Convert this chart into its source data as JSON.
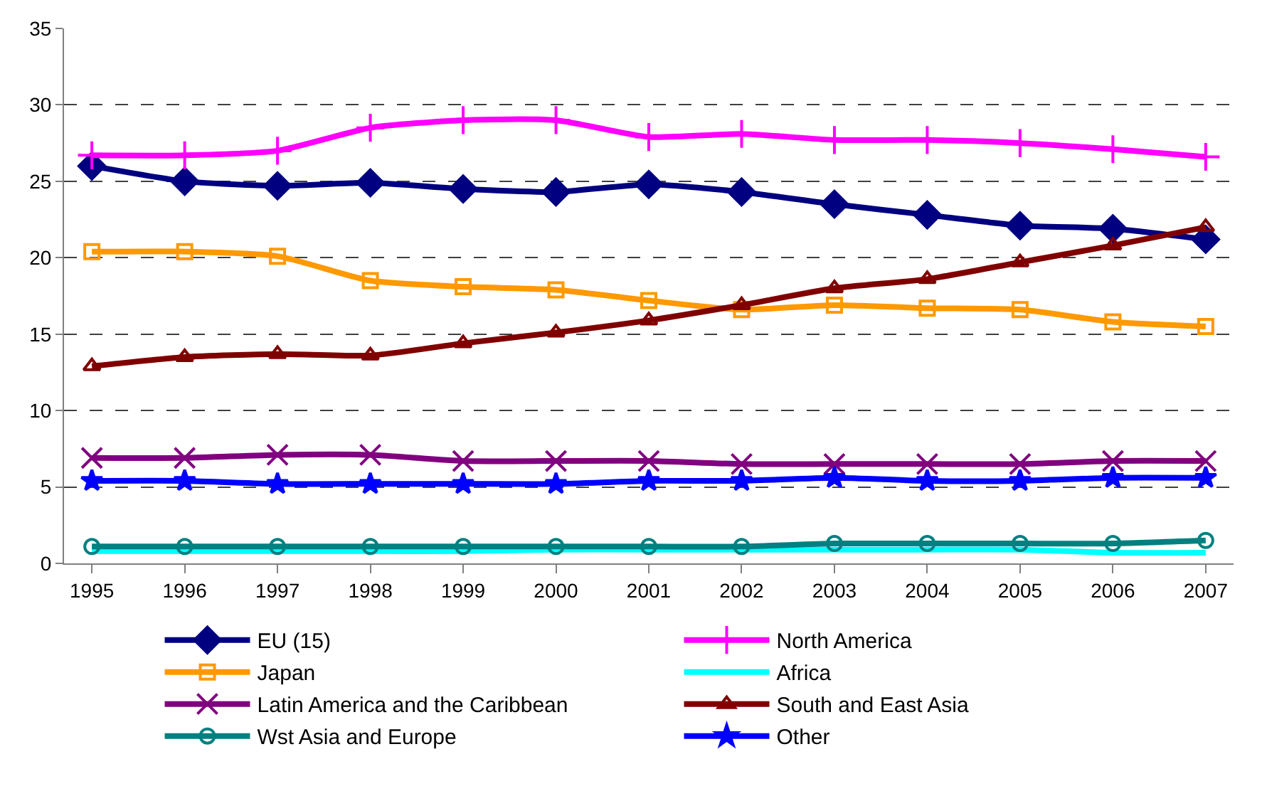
{
  "chart_data": {
    "type": "line",
    "categories": [
      "1995",
      "1996",
      "1997",
      "1998",
      "1999",
      "2000",
      "2001",
      "2002",
      "2003",
      "2004",
      "2005",
      "2006",
      "2007"
    ],
    "ylim": [
      0,
      35
    ],
    "yticks": [
      0,
      5,
      10,
      15,
      20,
      25,
      30,
      35
    ],
    "grid": "y",
    "legend": "bottom",
    "line_style": "solid",
    "series": [
      {
        "name": "EU (15)",
        "color": "#000080",
        "marker": "diamond",
        "values": [
          26.0,
          25.0,
          24.7,
          24.9,
          24.5,
          24.3,
          24.8,
          24.3,
          23.5,
          22.8,
          22.1,
          21.9,
          21.2
        ]
      },
      {
        "name": "North America",
        "color": "#ff00ff",
        "marker": "cross",
        "values": [
          26.7,
          26.7,
          27.0,
          28.5,
          29.0,
          29.0,
          27.9,
          28.1,
          27.7,
          27.7,
          27.5,
          27.1,
          26.6
        ]
      },
      {
        "name": "Japan",
        "color": "#ff9900",
        "marker": "square",
        "values": [
          20.4,
          20.4,
          20.1,
          18.5,
          18.1,
          17.9,
          17.2,
          16.6,
          16.9,
          16.7,
          16.6,
          15.8,
          15.5
        ]
      },
      {
        "name": "Africa",
        "color": "#00ffff",
        "marker": "none",
        "values": [
          0.8,
          0.8,
          0.8,
          0.8,
          0.8,
          0.9,
          0.9,
          0.9,
          0.9,
          0.9,
          0.9,
          0.7,
          0.7
        ]
      },
      {
        "name": "Latin America and the Caribbean",
        "color": "#800080",
        "marker": "x",
        "values": [
          6.9,
          6.9,
          7.1,
          7.1,
          6.7,
          6.7,
          6.7,
          6.5,
          6.5,
          6.5,
          6.5,
          6.7,
          6.7
        ]
      },
      {
        "name": "South and East Asia",
        "color": "#800000",
        "marker": "triangle",
        "values": [
          12.9,
          13.5,
          13.7,
          13.6,
          14.4,
          15.1,
          15.9,
          16.9,
          18.0,
          18.6,
          19.7,
          20.8,
          22.0
        ]
      },
      {
        "name": "Wst Asia and Europe",
        "color": "#008080",
        "marker": "circle",
        "values": [
          1.1,
          1.1,
          1.1,
          1.1,
          1.1,
          1.1,
          1.1,
          1.1,
          1.3,
          1.3,
          1.3,
          1.3,
          1.5
        ]
      },
      {
        "name": "Other",
        "color": "#0000ff",
        "marker": "star",
        "values": [
          5.4,
          5.4,
          5.2,
          5.2,
          5.2,
          5.2,
          5.4,
          5.4,
          5.6,
          5.4,
          5.4,
          5.6,
          5.6
        ]
      }
    ]
  }
}
